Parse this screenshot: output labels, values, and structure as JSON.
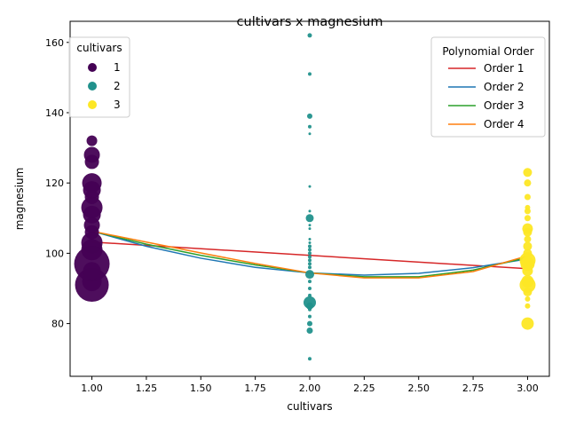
{
  "chart_data": {
    "type": "scatter",
    "title": "cultivars x magnesium",
    "xlabel": "cultivars",
    "ylabel": "magnesium",
    "xlim": [
      0.9,
      3.1
    ],
    "ylim": [
      65,
      166
    ],
    "xticks": [
      "1.00",
      "1.25",
      "1.50",
      "1.75",
      "2.00",
      "2.25",
      "2.50",
      "2.75",
      "3.00"
    ],
    "xtick_values": [
      1.0,
      1.25,
      1.5,
      1.75,
      2.0,
      2.25,
      2.5,
      2.75,
      3.0
    ],
    "yticks": [
      "80",
      "100",
      "120",
      "140",
      "160"
    ],
    "ytick_values": [
      80,
      100,
      120,
      140,
      160
    ],
    "grid": false,
    "scatter_legend": {
      "title": "cultivars",
      "placement": "top-left",
      "entries": [
        {
          "label": "1",
          "color": "#440154"
        },
        {
          "label": "2",
          "color": "#21918c"
        },
        {
          "label": "3",
          "color": "#fde725"
        }
      ]
    },
    "points": [
      {
        "x": 1,
        "y": 132,
        "s": 6,
        "c": "#440154"
      },
      {
        "x": 1,
        "y": 128,
        "s": 9,
        "c": "#440154"
      },
      {
        "x": 1,
        "y": 126,
        "s": 8,
        "c": "#440154"
      },
      {
        "x": 1,
        "y": 120,
        "s": 11,
        "c": "#440154"
      },
      {
        "x": 1,
        "y": 118,
        "s": 10,
        "c": "#440154"
      },
      {
        "x": 1,
        "y": 116,
        "s": 8,
        "c": "#440154"
      },
      {
        "x": 1,
        "y": 113,
        "s": 12,
        "c": "#440154"
      },
      {
        "x": 1,
        "y": 111,
        "s": 10,
        "c": "#440154"
      },
      {
        "x": 1,
        "y": 108,
        "s": 9,
        "c": "#440154"
      },
      {
        "x": 1,
        "y": 106,
        "s": 8,
        "c": "#440154"
      },
      {
        "x": 1,
        "y": 103,
        "s": 12,
        "c": "#440154"
      },
      {
        "x": 1,
        "y": 101,
        "s": 12,
        "c": "#440154"
      },
      {
        "x": 1,
        "y": 97,
        "s": 20,
        "c": "#440154"
      },
      {
        "x": 1,
        "y": 92,
        "s": 11,
        "c": "#440154"
      },
      {
        "x": 1,
        "y": 91,
        "s": 19,
        "c": "#440154"
      },
      {
        "x": 1,
        "y": 95,
        "s": 10,
        "c": "#440154"
      },
      {
        "x": 2,
        "y": 162,
        "s": 2.5,
        "c": "#21918c"
      },
      {
        "x": 2,
        "y": 151,
        "s": 2,
        "c": "#21918c"
      },
      {
        "x": 2,
        "y": 139,
        "s": 3,
        "c": "#21918c"
      },
      {
        "x": 2,
        "y": 136,
        "s": 2,
        "c": "#21918c"
      },
      {
        "x": 2,
        "y": 134,
        "s": 1.5,
        "c": "#21918c"
      },
      {
        "x": 2,
        "y": 119,
        "s": 1.5,
        "c": "#21918c"
      },
      {
        "x": 2,
        "y": 112,
        "s": 1.5,
        "c": "#21918c"
      },
      {
        "x": 2,
        "y": 110,
        "s": 4.5,
        "c": "#21918c"
      },
      {
        "x": 2,
        "y": 108,
        "s": 1.5,
        "c": "#21918c"
      },
      {
        "x": 2,
        "y": 107,
        "s": 1.5,
        "c": "#21918c"
      },
      {
        "x": 2,
        "y": 104,
        "s": 1.5,
        "c": "#21918c"
      },
      {
        "x": 2,
        "y": 103,
        "s": 1.5,
        "c": "#21918c"
      },
      {
        "x": 2,
        "y": 102,
        "s": 2,
        "c": "#21918c"
      },
      {
        "x": 2,
        "y": 101,
        "s": 2,
        "c": "#21918c"
      },
      {
        "x": 2,
        "y": 100,
        "s": 2,
        "c": "#21918c"
      },
      {
        "x": 2,
        "y": 99,
        "s": 2,
        "c": "#21918c"
      },
      {
        "x": 2,
        "y": 98,
        "s": 2,
        "c": "#21918c"
      },
      {
        "x": 2,
        "y": 97,
        "s": 2,
        "c": "#21918c"
      },
      {
        "x": 2,
        "y": 96,
        "s": 2,
        "c": "#21918c"
      },
      {
        "x": 2,
        "y": 94,
        "s": 5,
        "c": "#21918c"
      },
      {
        "x": 2,
        "y": 92,
        "s": 2,
        "c": "#21918c"
      },
      {
        "x": 2,
        "y": 90,
        "s": 2,
        "c": "#21918c"
      },
      {
        "x": 2,
        "y": 88,
        "s": 2,
        "c": "#21918c"
      },
      {
        "x": 2,
        "y": 86,
        "s": 7,
        "c": "#21918c"
      },
      {
        "x": 2,
        "y": 85,
        "s": 4,
        "c": "#21918c"
      },
      {
        "x": 2,
        "y": 84,
        "s": 2,
        "c": "#21918c"
      },
      {
        "x": 2,
        "y": 82,
        "s": 2,
        "c": "#21918c"
      },
      {
        "x": 2,
        "y": 80,
        "s": 3,
        "c": "#21918c"
      },
      {
        "x": 2,
        "y": 78,
        "s": 3.5,
        "c": "#21918c"
      },
      {
        "x": 2,
        "y": 70,
        "s": 2,
        "c": "#21918c"
      },
      {
        "x": 3,
        "y": 123,
        "s": 5,
        "c": "#fde725"
      },
      {
        "x": 3,
        "y": 120,
        "s": 4,
        "c": "#fde725"
      },
      {
        "x": 3,
        "y": 116,
        "s": 3.5,
        "c": "#fde725"
      },
      {
        "x": 3,
        "y": 113,
        "s": 3,
        "c": "#fde725"
      },
      {
        "x": 3,
        "y": 112,
        "s": 3.5,
        "c": "#fde725"
      },
      {
        "x": 3,
        "y": 110,
        "s": 3.5,
        "c": "#fde725"
      },
      {
        "x": 3,
        "y": 107,
        "s": 6,
        "c": "#fde725"
      },
      {
        "x": 3,
        "y": 106,
        "s": 5,
        "c": "#fde725"
      },
      {
        "x": 3,
        "y": 104,
        "s": 4,
        "c": "#fde725"
      },
      {
        "x": 3,
        "y": 102,
        "s": 5,
        "c": "#fde725"
      },
      {
        "x": 3,
        "y": 100,
        "s": 5,
        "c": "#fde725"
      },
      {
        "x": 3,
        "y": 98,
        "s": 9,
        "c": "#fde725"
      },
      {
        "x": 3,
        "y": 97,
        "s": 8,
        "c": "#fde725"
      },
      {
        "x": 3,
        "y": 95,
        "s": 6,
        "c": "#fde725"
      },
      {
        "x": 3,
        "y": 92,
        "s": 7,
        "c": "#fde725"
      },
      {
        "x": 3,
        "y": 91,
        "s": 9,
        "c": "#fde725"
      },
      {
        "x": 3,
        "y": 89,
        "s": 5,
        "c": "#fde725"
      },
      {
        "x": 3,
        "y": 87,
        "s": 3,
        "c": "#fde725"
      },
      {
        "x": 3,
        "y": 85,
        "s": 3,
        "c": "#fde725"
      },
      {
        "x": 3,
        "y": 80,
        "s": 7,
        "c": "#fde725"
      }
    ],
    "fit_legend": {
      "title": "Polynomial Order",
      "placement": "top-right"
    },
    "fits": [
      {
        "name": "Order 1",
        "color": "#d62728",
        "x": [
          1.0,
          3.0
        ],
        "y": [
          103.2,
          95.6
        ]
      },
      {
        "name": "Order 2",
        "color": "#1f77b4",
        "x": [
          1.0,
          1.25,
          1.5,
          1.75,
          2.0,
          2.25,
          2.5,
          2.75,
          3.0
        ],
        "y": [
          106.3,
          102.0,
          98.6,
          96.0,
          94.4,
          93.8,
          94.3,
          95.9,
          98.4
        ]
      },
      {
        "name": "Order 3",
        "color": "#2ca02c",
        "x": [
          1.0,
          1.25,
          1.5,
          1.75,
          2.0,
          2.25,
          2.5,
          2.75,
          3.0
        ],
        "y": [
          106.3,
          102.6,
          99.4,
          96.7,
          94.4,
          93.3,
          93.3,
          95.2,
          98.8
        ]
      },
      {
        "name": "Order 4",
        "color": "#ff7f0e",
        "x": [
          1.0,
          1.25,
          1.5,
          1.75,
          2.0,
          2.25,
          2.5,
          2.75,
          3.0
        ],
        "y": [
          106.3,
          103.2,
          100.1,
          97.1,
          94.4,
          93.0,
          93.0,
          94.8,
          99.3
        ]
      }
    ]
  }
}
